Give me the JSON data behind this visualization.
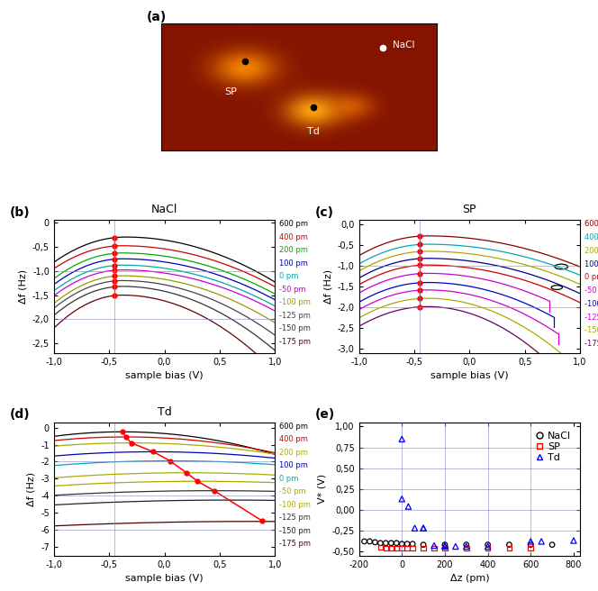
{
  "title_a": "(a)",
  "title_b": "(b)",
  "title_c": "(c)",
  "title_d": "(d)",
  "title_e": "(e)",
  "label_NaCl": "NaCl",
  "label_SP": "SP",
  "label_Td": "Td",
  "xlabel_bias": "sample bias (V)",
  "ylabel_deltaf": "Δf (Hz)",
  "ylabel_V": "V* (V)",
  "xlabel_deltaz": "Δz (pm)",
  "b_ylim": [
    -2.7,
    0.05
  ],
  "c_ylim": [
    -3.1,
    0.1
  ],
  "d_ylim": [
    -7.5,
    0.3
  ],
  "e_ylim": [
    -0.55,
    1.05
  ],
  "e_xlim": [
    -200,
    830
  ],
  "xlim_bias": [
    -1.0,
    1.0
  ],
  "curve_labels": [
    "600 pm",
    "400 pm",
    "200 pm",
    "100 pm",
    "0 pm",
    "-50 pm",
    "-100 pm",
    "-125 pm",
    "-150 pm",
    "-175 pm"
  ],
  "b_curve_colors": [
    "black",
    "#cc0000",
    "#00aa00",
    "#0000cc",
    "#00aaaa",
    "#cc00cc",
    "#aaaa00",
    "#333333",
    "#222222",
    "#660000"
  ],
  "c_curve_colors": [
    "#880000",
    "#00aaaa",
    "#aaaa00",
    "#000088",
    "#cc0000",
    "#cc00cc",
    "#0000cc",
    "#cc00cc",
    "#aaaa00",
    "#660066"
  ],
  "d_curve_colors": [
    "black",
    "#cc0000",
    "#aaaa00",
    "#0000cc",
    "#00aaaa",
    "#aaaa00",
    "#aaaa00",
    "#222222",
    "#111111",
    "#550000"
  ],
  "e_NaCl_z": [
    -175,
    -150,
    -125,
    -100,
    -75,
    -50,
    -25,
    0,
    25,
    50,
    100,
    200,
    300,
    400,
    500,
    600,
    700
  ],
  "e_NaCl_V": [
    -0.38,
    -0.38,
    -0.39,
    -0.4,
    -0.4,
    -0.4,
    -0.4,
    -0.41,
    -0.41,
    -0.41,
    -0.42,
    -0.42,
    -0.42,
    -0.42,
    -0.42,
    -0.42,
    -0.42
  ],
  "e_SP_z": [
    -100,
    -75,
    -50,
    -25,
    0,
    25,
    50,
    100,
    150,
    200,
    300,
    400,
    500,
    600
  ],
  "e_SP_V": [
    -0.45,
    -0.46,
    -0.46,
    -0.46,
    -0.46,
    -0.46,
    -0.46,
    -0.46,
    -0.46,
    -0.46,
    -0.46,
    -0.46,
    -0.46,
    -0.46
  ],
  "e_Td_z": [
    0,
    0,
    30,
    60,
    100,
    100,
    150,
    200,
    200,
    250,
    300,
    400,
    600,
    650,
    800
  ],
  "e_Td_V": [
    0.85,
    0.13,
    0.04,
    -0.22,
    -0.22,
    -0.22,
    -0.43,
    -0.43,
    -0.44,
    -0.44,
    -0.44,
    -0.44,
    -0.38,
    -0.38,
    -0.37
  ]
}
